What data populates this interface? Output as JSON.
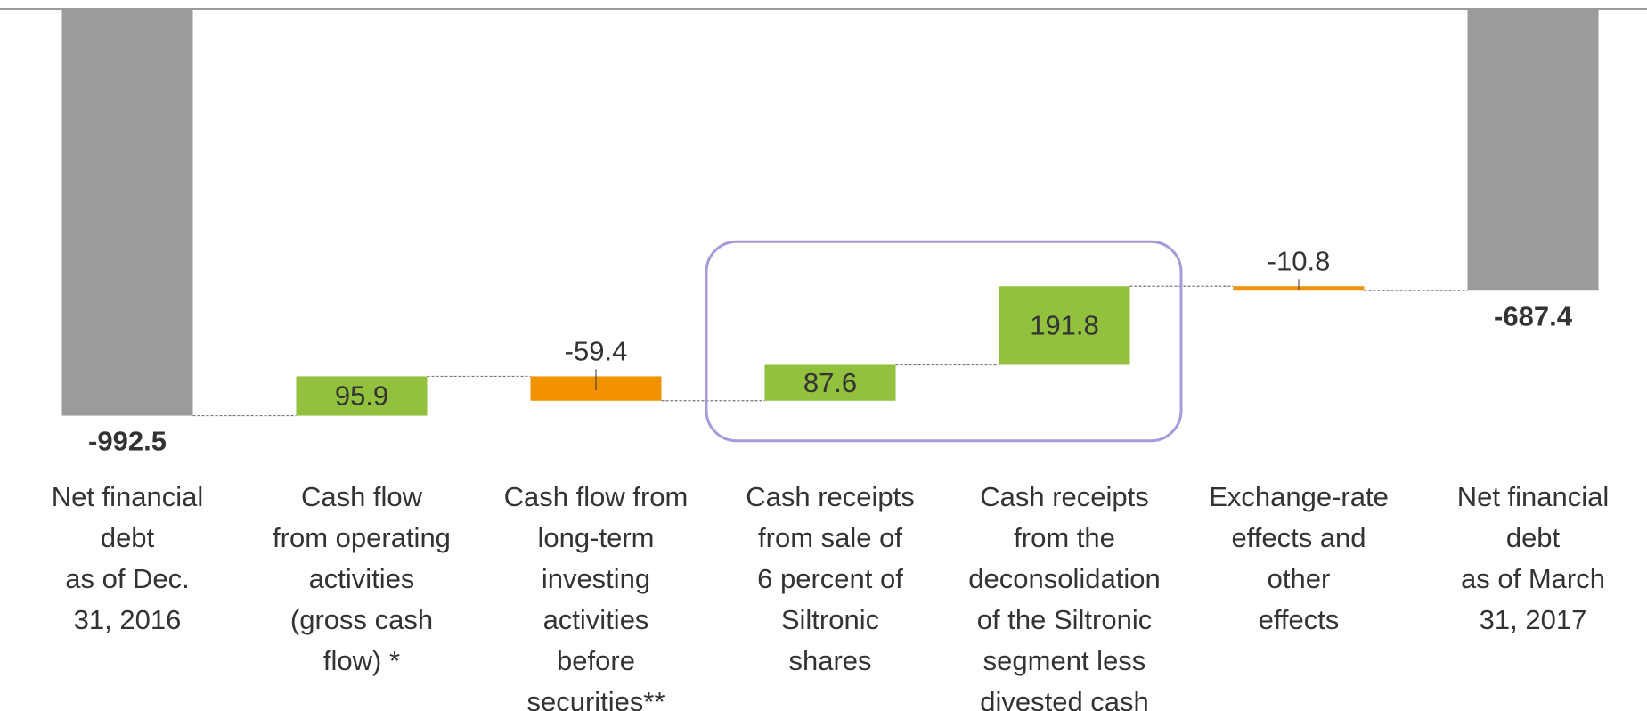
{
  "chart_data": {
    "type": "waterfall",
    "categories": [
      [
        "Net financial",
        "debt",
        "as of Dec.",
        "31, 2016"
      ],
      [
        "Cash flow",
        "from operating",
        "activities",
        "(gross cash",
        "flow) *"
      ],
      [
        "Cash flow from",
        "long-term",
        "investing",
        "activities",
        "before",
        "securities**"
      ],
      [
        "Cash receipts",
        "from sale of",
        "6 percent of",
        "Siltronic",
        "shares"
      ],
      [
        "Cash receipts",
        "from the",
        "deconsolidation",
        "of the Siltronic",
        "segment less",
        "divested cash"
      ],
      [
        "Exchange-rate",
        "effects and",
        "other",
        "effects"
      ],
      [
        "Net financial",
        "debt",
        "as of March",
        "31, 2017"
      ]
    ],
    "values": [
      -992.5,
      95.9,
      -59.4,
      87.6,
      191.8,
      -10.8,
      -687.4
    ],
    "measure": [
      "total",
      "relative",
      "relative",
      "relative",
      "relative",
      "relative",
      "total"
    ],
    "ylim": [
      -1000,
      0
    ],
    "colors": {
      "total": "#9b9b9b",
      "increase": "#92c13e",
      "decrease": "#f39200",
      "highlight": "#a899dc"
    }
  }
}
